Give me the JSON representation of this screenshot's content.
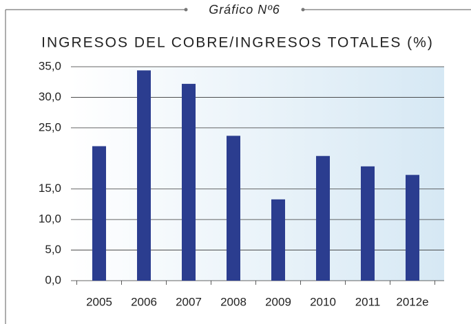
{
  "header": "Gráfico Nº6",
  "chart_data": {
    "type": "bar",
    "title": "INGRESOS DEL COBRE/INGRESOS TOTALES (%)",
    "categories": [
      "2005",
      "2006",
      "2007",
      "2008",
      "2009",
      "2010",
      "2011",
      "2012e"
    ],
    "values": [
      22,
      34.4,
      32.2,
      23.7,
      13.3,
      20.4,
      18.7,
      17.3
    ],
    "color": "#2b3d8f",
    "ylim": [
      0,
      35
    ],
    "yticks": [
      {
        "value": 0,
        "label": "0,0"
      },
      {
        "value": 5,
        "label": "5,0"
      },
      {
        "value": 10,
        "label": "10,0"
      },
      {
        "value": 15,
        "label": "15,0"
      },
      {
        "value": 25,
        "label": "25,0"
      },
      {
        "value": 30,
        "label": "30,0"
      },
      {
        "value": 35,
        "label": "35,0"
      }
    ],
    "grid": true
  }
}
